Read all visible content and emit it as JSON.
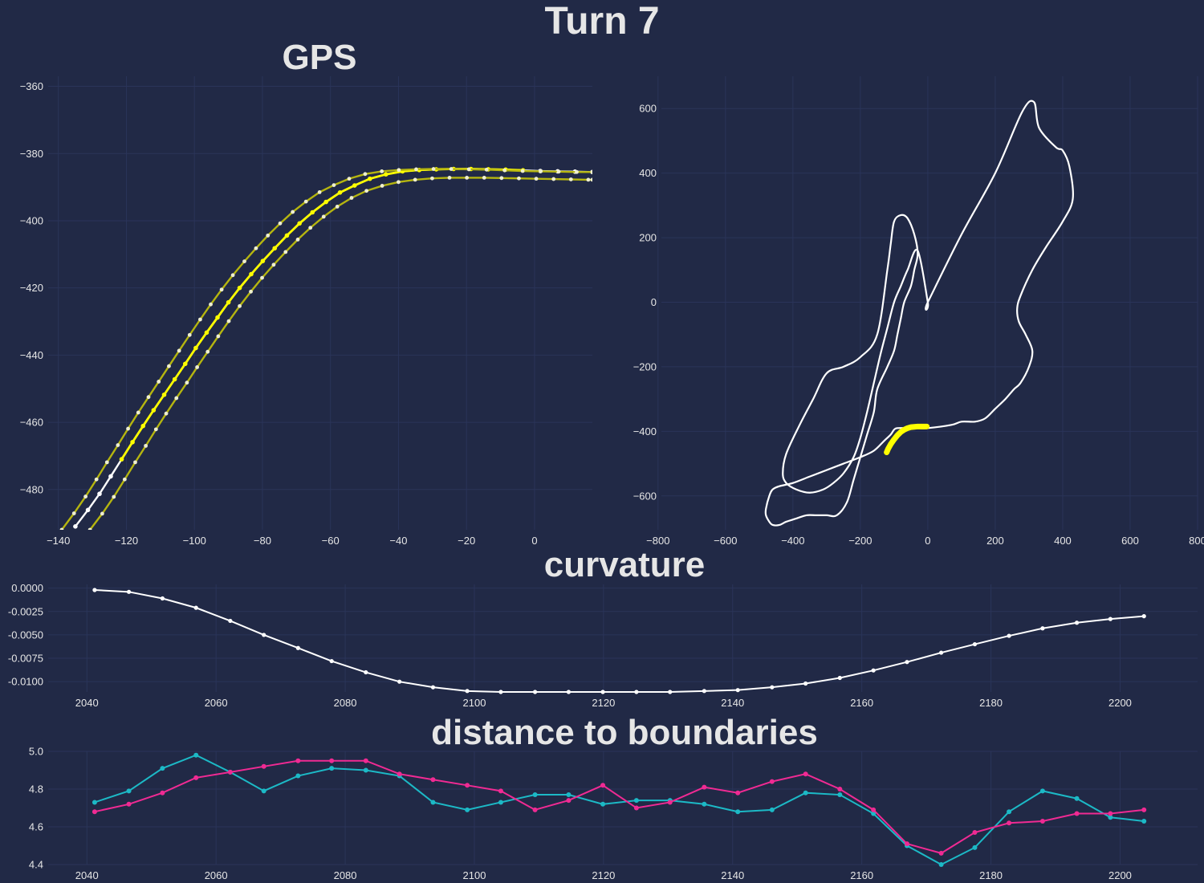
{
  "title": "Turn 7",
  "colors": {
    "background": "#212946",
    "grid": "#2A3459",
    "text": "#E6E6E6",
    "center_line": "#FFFFFF",
    "highlight": "#FFFF00",
    "boundary_line": "#B5B510",
    "cyan": "#1CB9C6",
    "magenta": "#F02A93"
  },
  "chart_data": [
    {
      "id": "gps",
      "type": "line",
      "title": "GPS",
      "xlim": [
        -143,
        17
      ],
      "ylim": [
        -492,
        -357
      ],
      "xticks": [
        -140,
        -120,
        -100,
        -80,
        -60,
        -40,
        -20,
        0
      ],
      "yticks": [
        -360,
        -380,
        -400,
        -420,
        -440,
        -460,
        -480
      ],
      "grid": true,
      "series": [
        {
          "role": "center",
          "x": [
            -135,
            -131.3,
            -127.9,
            -124.6,
            -121.4,
            -118.2,
            -115.1,
            -112,
            -108.9,
            -105.8,
            -102.7,
            -99.6,
            -96.4,
            -93.2,
            -90,
            -86.7,
            -83.3,
            -79.9,
            -76.4,
            -72.8,
            -69.1,
            -65.3,
            -61.3,
            -57.2,
            -52.9,
            -48.4,
            -43.7,
            -38.8,
            -33.9,
            -28.9,
            -23.8,
            -18.7,
            -13.6,
            -8.5,
            -3.4,
            1.7,
            6.8,
            11.9,
            17
          ],
          "y": [
            -491,
            -486.1,
            -481.3,
            -476.1,
            -471,
            -465.9,
            -461.1,
            -456.4,
            -451.8,
            -447.2,
            -442.6,
            -437.9,
            -433.3,
            -428.8,
            -424.3,
            -420,
            -415.9,
            -412,
            -408.2,
            -404.4,
            -400.8,
            -397.5,
            -394.4,
            -391.6,
            -389.5,
            -387.5,
            -386.2,
            -385.3,
            -384.9,
            -384.7,
            -384.6,
            -384.6,
            -384.7,
            -384.8,
            -385,
            -385.2,
            -385.3,
            -385.4,
            -385.5
          ],
          "highlight_x_range": [
            -122,
            -3.4
          ]
        },
        {
          "role": "left-boundary",
          "x": [
            -139,
            -135.4,
            -132,
            -128.8,
            -125.7,
            -122.5,
            -119.5,
            -116.5,
            -113.5,
            -110.5,
            -107.5,
            -104.5,
            -101.4,
            -98.3,
            -95.2,
            -92,
            -88.7,
            -85.3,
            -81.9,
            -78.4,
            -74.8,
            -71.1,
            -67.2,
            -63.2,
            -59,
            -54.5,
            -49.8,
            -44.9,
            -39.9,
            -34.8,
            -29.7,
            -24.5,
            -19.3,
            -14.1,
            -8.8,
            -3.5,
            1.8,
            7.1,
            12.4,
            17
          ],
          "y": [
            -492,
            -487.1,
            -482.1,
            -477,
            -471.9,
            -466.8,
            -461.9,
            -457.1,
            -452.5,
            -447.9,
            -443.3,
            -438.7,
            -434,
            -429.4,
            -424.9,
            -420.5,
            -416.2,
            -412.1,
            -408.2,
            -404.4,
            -400.8,
            -397.4,
            -394.3,
            -391.5,
            -389.4,
            -387.5,
            -386.1,
            -385.3,
            -384.9,
            -384.7,
            -384.6,
            -384.6,
            -384.7,
            -384.8,
            -385,
            -385.2,
            -385.3,
            -385.4,
            -385.5,
            -385.5
          ]
        },
        {
          "role": "right-boundary",
          "x": [
            -130.7,
            -127.1,
            -123.7,
            -120.5,
            -117.4,
            -114.3,
            -111.3,
            -108.3,
            -105.3,
            -102.2,
            -99.2,
            -96.1,
            -93,
            -89.9,
            -86.7,
            -83.4,
            -80.1,
            -76.7,
            -73.2,
            -69.6,
            -65.9,
            -62,
            -58,
            -53.8,
            -49.4,
            -44.8,
            -40,
            -35.1,
            -30.1,
            -25,
            -19.9,
            -14.8,
            -9.7,
            -4.6,
            0.5,
            5.6,
            10.7,
            15.8,
            17
          ],
          "y": [
            -492,
            -487.2,
            -482.2,
            -477,
            -471.9,
            -467,
            -462.1,
            -457.4,
            -452.8,
            -448.2,
            -443.6,
            -439,
            -434.4,
            -429.9,
            -425.4,
            -421.1,
            -417,
            -413.1,
            -409.3,
            -405.6,
            -402.1,
            -398.8,
            -395.8,
            -393.2,
            -391.1,
            -389.6,
            -388.5,
            -387.8,
            -387.4,
            -387.2,
            -387.2,
            -387.2,
            -387.3,
            -387.4,
            -387.5,
            -387.6,
            -387.7,
            -387.8,
            -387.8
          ]
        }
      ]
    },
    {
      "id": "track",
      "type": "line",
      "xlim": [
        -790,
        800
      ],
      "ylim": [
        -705,
        700
      ],
      "xticks": [
        -800,
        -600,
        -400,
        -200,
        0,
        200,
        400,
        600,
        800
      ],
      "yticks": [
        600,
        400,
        200,
        0,
        -200,
        -400,
        -600
      ],
      "grid": true,
      "track_outline": {
        "x": [
          0,
          100,
          200,
          280,
          315,
          330,
          380,
          400,
          420,
          430,
          400,
          350,
          310,
          275,
          265,
          270,
          290,
          310,
          300,
          275,
          255,
          230,
          200,
          170,
          140,
          100,
          70,
          0,
          -30,
          -60,
          -90,
          -100,
          -110,
          -130,
          -160,
          -200,
          -250,
          -300,
          -350,
          -400,
          -440,
          -460,
          -470,
          -480,
          -480,
          -470,
          -460,
          -440,
          -420,
          -390,
          -360,
          -330,
          -300,
          -270,
          -240,
          -220,
          -200,
          -180,
          -160,
          -150,
          -120,
          -100,
          -90,
          -80,
          -70,
          -50,
          -40,
          -30,
          -40,
          -60,
          -80,
          -100,
          -110,
          -120,
          -150,
          -200,
          -250,
          -300,
          -340,
          -380,
          -420,
          -430,
          -420,
          -390,
          -350,
          -310,
          -280,
          -250,
          -220,
          -200,
          -180,
          -160,
          -140,
          -120,
          -100,
          -80,
          -60,
          -30,
          0
        ],
        "y": [
          0,
          210,
          400,
          590,
          620,
          540,
          480,
          470,
          420,
          320,
          250,
          170,
          100,
          20,
          -20,
          -60,
          -100,
          -150,
          -200,
          -250,
          -270,
          -300,
          -330,
          -360,
          -370,
          -370,
          -380,
          -390,
          -390,
          -390,
          -390,
          -395,
          -410,
          -430,
          -460,
          -480,
          -500,
          -520,
          -540,
          -560,
          -570,
          -580,
          -600,
          -640,
          -660,
          -680,
          -690,
          -690,
          -680,
          -670,
          -660,
          -660,
          -660,
          -660,
          -620,
          -550,
          -480,
          -410,
          -340,
          -270,
          -200,
          -150,
          -100,
          -50,
          0,
          50,
          100,
          150,
          210,
          260,
          270,
          250,
          180,
          100,
          -100,
          -170,
          -200,
          -220,
          -300,
          -380,
          -470,
          -530,
          -560,
          -580,
          -590,
          -580,
          -560,
          -530,
          -480,
          -420,
          -340,
          -250,
          -160,
          -80,
          0,
          50,
          100,
          160,
          0
        ],
        "closed": true
      },
      "highlight_segment": {
        "x": [
          -122,
          -118,
          -110,
          -100,
          -90,
          -80,
          -70,
          -60,
          -50,
          -40,
          -30,
          -20,
          -10,
          -3
        ],
        "y": [
          -465,
          -455,
          -440,
          -425,
          -412,
          -402,
          -395,
          -390,
          -387,
          -386,
          -385,
          -385,
          -385,
          -385
        ]
      }
    },
    {
      "id": "curvature",
      "type": "line",
      "title": "curvature",
      "xlim": [
        2034,
        2212
      ],
      "ylim": [
        -0.0111,
        0.0004
      ],
      "xticks": [
        2040,
        2060,
        2080,
        2100,
        2120,
        2140,
        2160,
        2180,
        2200
      ],
      "yticks": [
        0.0,
        -0.0025,
        -0.005,
        -0.0075,
        -0.01
      ],
      "ytick_labels": [
        "0.0000",
        "-0.0025",
        "-0.0050",
        "-0.0075",
        "-0.0100"
      ],
      "grid": true,
      "x": [
        2041.2,
        2046.5,
        2051.7,
        2056.9,
        2062.2,
        2067.4,
        2072.7,
        2077.9,
        2083.2,
        2088.4,
        2093.6,
        2098.9,
        2104.1,
        2109.4,
        2114.6,
        2119.9,
        2125.1,
        2130.3,
        2135.6,
        2140.8,
        2146.1,
        2151.3,
        2156.6,
        2161.8,
        2167,
        2172.3,
        2177.5,
        2182.8,
        2188,
        2193.3,
        2198.5,
        2203.7
      ],
      "y": [
        -0.0002,
        -0.0004,
        -0.0011,
        -0.0021,
        -0.0035,
        -0.005,
        -0.0064,
        -0.0078,
        -0.009,
        -0.01,
        -0.0106,
        -0.011,
        -0.0111,
        -0.0111,
        -0.0111,
        -0.0111,
        -0.0111,
        -0.0111,
        -0.011,
        -0.0109,
        -0.0106,
        -0.0102,
        -0.0096,
        -0.0088,
        -0.0079,
        -0.0069,
        -0.006,
        -0.0051,
        -0.0043,
        -0.0037,
        -0.0033,
        -0.003
      ]
    },
    {
      "id": "distance",
      "type": "line",
      "title": "distance to boundaries",
      "xlim": [
        2034,
        2212
      ],
      "ylim": [
        4.4,
        5.0
      ],
      "xticks": [
        2040,
        2060,
        2080,
        2100,
        2120,
        2140,
        2160,
        2180,
        2200
      ],
      "yticks": [
        5.0,
        4.8,
        4.6,
        4.4
      ],
      "ytick_labels": [
        "5.0",
        "4.8",
        "4.6",
        "4.4"
      ],
      "grid": true,
      "x": [
        2041.2,
        2046.5,
        2051.7,
        2056.9,
        2062.2,
        2067.4,
        2072.7,
        2077.9,
        2083.2,
        2088.4,
        2093.6,
        2098.9,
        2104.1,
        2109.4,
        2114.6,
        2119.9,
        2125.1,
        2130.3,
        2135.6,
        2140.8,
        2146.1,
        2151.3,
        2156.6,
        2161.8,
        2167,
        2172.3,
        2177.5,
        2182.8,
        2188,
        2193.3,
        2198.5,
        2203.7
      ],
      "series": [
        {
          "color_key": "cyan",
          "values": [
            4.73,
            4.79,
            4.91,
            4.98,
            4.89,
            4.79,
            4.87,
            4.91,
            4.9,
            4.87,
            4.73,
            4.69,
            4.73,
            4.77,
            4.77,
            4.72,
            4.74,
            4.74,
            4.72,
            4.68,
            4.69,
            4.78,
            4.77,
            4.67,
            4.5,
            4.4,
            4.49,
            4.68,
            4.79,
            4.75,
            4.65,
            4.63
          ]
        },
        {
          "color_key": "magenta",
          "values": [
            4.68,
            4.72,
            4.78,
            4.86,
            4.89,
            4.92,
            4.95,
            4.95,
            4.95,
            4.88,
            4.85,
            4.82,
            4.79,
            4.69,
            4.74,
            4.82,
            4.7,
            4.73,
            4.81,
            4.78,
            4.84,
            4.88,
            4.8,
            4.69,
            4.51,
            4.46,
            4.57,
            4.62,
            4.63,
            4.67,
            4.67,
            4.69
          ]
        }
      ]
    }
  ]
}
